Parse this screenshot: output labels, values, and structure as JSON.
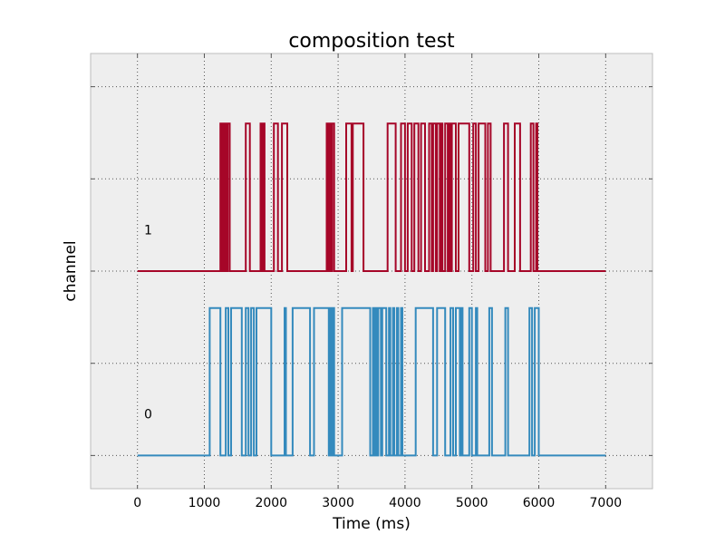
{
  "chart_data": {
    "type": "line",
    "title": "composition test",
    "xlabel": "Time (ms)",
    "ylabel": "channel",
    "xlim": [
      -700,
      7700
    ],
    "xticks": [
      0,
      1000,
      2000,
      3000,
      4000,
      5000,
      6000,
      7000
    ],
    "xtick_labels": [
      "0",
      "1000",
      "2000",
      "3000",
      "4000",
      "5000",
      "6000",
      "7000"
    ],
    "ylim": [
      -0.18,
      2.18
    ],
    "yticks": [
      0,
      0.5,
      1,
      1.5,
      2
    ],
    "grid": true,
    "style": "step",
    "high_level": 0.8,
    "colors": {
      "channel_0": "#348abd",
      "channel_1": "#a60628",
      "background": "#eeeeee",
      "grid": "#555555"
    },
    "series": [
      {
        "name": "0",
        "baseline": 0,
        "color": "#348abd",
        "transitions": [
          0,
          1080,
          1240,
          1320,
          1360,
          1400,
          1560,
          1620,
          1660,
          1700,
          1740,
          1780,
          2000,
          2200,
          2220,
          2320,
          2580,
          2640,
          2860,
          2880,
          2900,
          2920,
          2940,
          3060,
          3480,
          3520,
          3540,
          3560,
          3580,
          3600,
          3640,
          3660,
          3720,
          3760,
          3780,
          3820,
          3840,
          3880,
          3900,
          3940,
          3960,
          4160,
          4420,
          4480,
          4600,
          4680,
          4720,
          4760,
          4820,
          4840,
          4860,
          4960,
          5000,
          5060,
          5080,
          5260,
          5300,
          5500,
          5540,
          5860,
          5900,
          5940,
          6000,
          7000
        ],
        "start_level": 0
      },
      {
        "name": "1",
        "baseline": 1,
        "color": "#a60628",
        "transitions": [
          0,
          1240,
          1260,
          1270,
          1280,
          1290,
          1300,
          1320,
          1330,
          1350,
          1380,
          1620,
          1680,
          1840,
          1860,
          1880,
          1900,
          2040,
          2100,
          2160,
          2240,
          2830,
          2850,
          2870,
          2890,
          2910,
          2940,
          3120,
          3200,
          3220,
          3380,
          3740,
          3860,
          3940,
          4000,
          4040,
          4100,
          4140,
          4200,
          4240,
          4300,
          4360,
          4400,
          4420,
          4460,
          4480,
          4520,
          4540,
          4560,
          4600,
          4640,
          4660,
          4680,
          4700,
          4760,
          4800,
          4960,
          5020,
          5060,
          5100,
          5200,
          5240,
          5280,
          5480,
          5540,
          5640,
          5720,
          5880,
          5920,
          5960,
          5980,
          7000
        ],
        "start_level": 0
      }
    ]
  }
}
